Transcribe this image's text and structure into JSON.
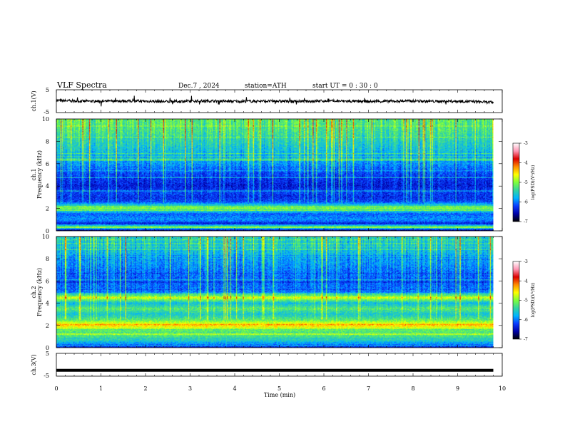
{
  "header": {
    "title": "VLF  Spectra",
    "date": "Dec.7  , 2024",
    "station": "station=ATH",
    "start": "start  UT  =    0  : 30 : 0"
  },
  "colors": {
    "background": "#ffffff",
    "axis": "#000000",
    "colormap": [
      "#000000",
      "#0000a8",
      "#0a3cff",
      "#00b4ff",
      "#33d4a0",
      "#7dff3c",
      "#ffff00",
      "#ff8c00",
      "#dc0000",
      "#ff96b4",
      "#ffffff"
    ]
  },
  "chart_data": [
    {
      "type": "line",
      "panel": "ch1-waveform",
      "ylabel": "ch.1(V)",
      "ylim": [
        -5,
        5
      ],
      "yticks": [
        "5",
        "-5"
      ],
      "x": [
        0,
        0.5,
        1,
        1.5,
        2,
        2.5,
        3,
        3.5,
        4,
        4.5,
        5,
        5.5,
        6,
        6.5,
        7,
        7.5,
        8,
        8.5,
        9,
        9.5,
        9.8
      ],
      "y": [
        0.3,
        0.0,
        -0.1,
        0.1,
        0.0,
        -0.2,
        0.0,
        0.1,
        -0.1,
        0.0,
        0.0,
        -0.1,
        0.1,
        0.0,
        -0.2,
        0.0,
        0.1,
        -0.1,
        0.0,
        -0.3,
        -0.6
      ],
      "xlim": [
        0,
        10
      ]
    },
    {
      "type": "heatmap",
      "panel": "ch1-spectrogram",
      "ylabel": [
        "ch.1",
        "Frequency  (kHz)"
      ],
      "ylim": [
        0,
        10
      ],
      "yticks": [
        "0",
        "2",
        "4",
        "6",
        "8",
        "10"
      ],
      "xlim": [
        0,
        10
      ],
      "data_end_min": 9.8,
      "level_range": [
        -7,
        -3
      ],
      "spectral_profile": [
        {
          "f": 0.0,
          "v": -6.7
        },
        {
          "f": 0.3,
          "v": -5.0
        },
        {
          "f": 0.6,
          "v": -6.3
        },
        {
          "f": 1.0,
          "v": -5.9
        },
        {
          "f": 1.5,
          "v": -6.1
        },
        {
          "f": 2.0,
          "v": -5.0
        },
        {
          "f": 2.2,
          "v": -5.4
        },
        {
          "f": 2.6,
          "v": -6.2
        },
        {
          "f": 3.0,
          "v": -6.3
        },
        {
          "f": 3.5,
          "v": -6.2
        },
        {
          "f": 4.0,
          "v": -6.4
        },
        {
          "f": 4.5,
          "v": -6.3
        },
        {
          "f": 5.0,
          "v": -6.2
        },
        {
          "f": 6.0,
          "v": -5.9
        },
        {
          "f": 7.0,
          "v": -5.7
        },
        {
          "f": 8.0,
          "v": -5.5
        },
        {
          "f": 9.0,
          "v": -5.3
        },
        {
          "f": 10.0,
          "v": -5.2
        }
      ],
      "colorbar": {
        "label": "log(PSD)(V²/Hz)",
        "ticks": [
          "-3",
          "-4",
          "-5",
          "-6",
          "-7"
        ],
        "range": [
          -7,
          -3
        ]
      }
    },
    {
      "type": "heatmap",
      "panel": "ch2-spectrogram",
      "ylabel": [
        "ch.2",
        "Frequency  (kHz)"
      ],
      "ylim": [
        0,
        10
      ],
      "yticks": [
        "0",
        "2",
        "4",
        "6",
        "8",
        "10"
      ],
      "xlim": [
        0,
        10
      ],
      "data_end_min": 9.8,
      "level_range": [
        -7,
        -3
      ],
      "spectral_profile": [
        {
          "f": 0.0,
          "v": -6.4
        },
        {
          "f": 0.5,
          "v": -5.6
        },
        {
          "f": 1.0,
          "v": -5.3
        },
        {
          "f": 1.5,
          "v": -5.2
        },
        {
          "f": 2.0,
          "v": -4.4
        },
        {
          "f": 2.5,
          "v": -5.2
        },
        {
          "f": 3.0,
          "v": -5.6
        },
        {
          "f": 3.5,
          "v": -5.2
        },
        {
          "f": 4.0,
          "v": -5.7
        },
        {
          "f": 4.5,
          "v": -4.7
        },
        {
          "f": 5.0,
          "v": -6.0
        },
        {
          "f": 6.0,
          "v": -6.1
        },
        {
          "f": 7.0,
          "v": -6.0
        },
        {
          "f": 8.0,
          "v": -5.8
        },
        {
          "f": 9.0,
          "v": -5.6
        },
        {
          "f": 10.0,
          "v": -5.5
        }
      ],
      "colorbar": {
        "label": "log(PSD)(V²/Hz)",
        "ticks": [
          "-3",
          "-4",
          "-5",
          "-6",
          "-7"
        ],
        "range": [
          -7,
          -3
        ]
      }
    },
    {
      "type": "line",
      "panel": "ch3-waveform",
      "ylabel": "ch.3(V)",
      "ylim": [
        -5,
        5
      ],
      "yticks": [
        "5",
        "-5"
      ],
      "x": [
        0,
        9.8
      ],
      "y": [
        -2.4,
        -2.4
      ],
      "xlim": [
        0,
        10
      ]
    }
  ],
  "xaxis": {
    "label": "Time  (min)",
    "ticks": [
      "0",
      "1",
      "2",
      "3",
      "4",
      "5",
      "6",
      "7",
      "8",
      "9",
      "10"
    ],
    "range": [
      0,
      10
    ]
  }
}
